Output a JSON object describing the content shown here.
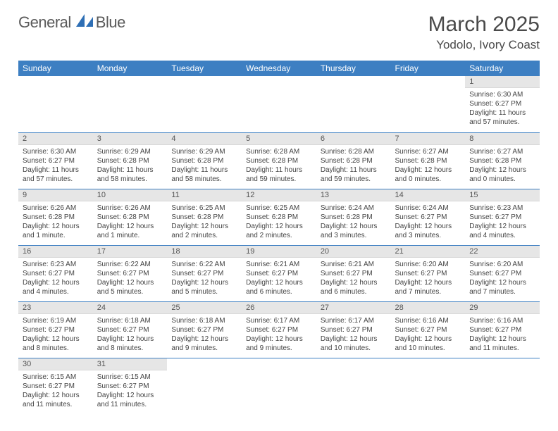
{
  "brand": {
    "word1": "General",
    "word2": "Blue"
  },
  "title": "March 2025",
  "location": "Yodolo, Ivory Coast",
  "colors": {
    "header_bg": "#3d7fc2",
    "header_text": "#ffffff",
    "daybar_bg": "#e6e6e6",
    "row_border": "#3d7fc2",
    "brand_gray": "#5a5a5a",
    "brand_blue": "#2e6fb5"
  },
  "typography": {
    "title_fontsize": 30,
    "location_fontsize": 17,
    "header_fontsize": 12,
    "cell_fontsize": 10,
    "daynum_fontsize": 11
  },
  "weekdays": [
    "Sunday",
    "Monday",
    "Tuesday",
    "Wednesday",
    "Thursday",
    "Friday",
    "Saturday"
  ],
  "first_weekday_index": 6,
  "days": [
    {
      "n": 1,
      "sunrise": "6:30 AM",
      "sunset": "6:27 PM",
      "daylight": "11 hours and 57 minutes."
    },
    {
      "n": 2,
      "sunrise": "6:30 AM",
      "sunset": "6:27 PM",
      "daylight": "11 hours and 57 minutes."
    },
    {
      "n": 3,
      "sunrise": "6:29 AM",
      "sunset": "6:28 PM",
      "daylight": "11 hours and 58 minutes."
    },
    {
      "n": 4,
      "sunrise": "6:29 AM",
      "sunset": "6:28 PM",
      "daylight": "11 hours and 58 minutes."
    },
    {
      "n": 5,
      "sunrise": "6:28 AM",
      "sunset": "6:28 PM",
      "daylight": "11 hours and 59 minutes."
    },
    {
      "n": 6,
      "sunrise": "6:28 AM",
      "sunset": "6:28 PM",
      "daylight": "11 hours and 59 minutes."
    },
    {
      "n": 7,
      "sunrise": "6:27 AM",
      "sunset": "6:28 PM",
      "daylight": "12 hours and 0 minutes."
    },
    {
      "n": 8,
      "sunrise": "6:27 AM",
      "sunset": "6:28 PM",
      "daylight": "12 hours and 0 minutes."
    },
    {
      "n": 9,
      "sunrise": "6:26 AM",
      "sunset": "6:28 PM",
      "daylight": "12 hours and 1 minute."
    },
    {
      "n": 10,
      "sunrise": "6:26 AM",
      "sunset": "6:28 PM",
      "daylight": "12 hours and 1 minute."
    },
    {
      "n": 11,
      "sunrise": "6:25 AM",
      "sunset": "6:28 PM",
      "daylight": "12 hours and 2 minutes."
    },
    {
      "n": 12,
      "sunrise": "6:25 AM",
      "sunset": "6:28 PM",
      "daylight": "12 hours and 2 minutes."
    },
    {
      "n": 13,
      "sunrise": "6:24 AM",
      "sunset": "6:28 PM",
      "daylight": "12 hours and 3 minutes."
    },
    {
      "n": 14,
      "sunrise": "6:24 AM",
      "sunset": "6:27 PM",
      "daylight": "12 hours and 3 minutes."
    },
    {
      "n": 15,
      "sunrise": "6:23 AM",
      "sunset": "6:27 PM",
      "daylight": "12 hours and 4 minutes."
    },
    {
      "n": 16,
      "sunrise": "6:23 AM",
      "sunset": "6:27 PM",
      "daylight": "12 hours and 4 minutes."
    },
    {
      "n": 17,
      "sunrise": "6:22 AM",
      "sunset": "6:27 PM",
      "daylight": "12 hours and 5 minutes."
    },
    {
      "n": 18,
      "sunrise": "6:22 AM",
      "sunset": "6:27 PM",
      "daylight": "12 hours and 5 minutes."
    },
    {
      "n": 19,
      "sunrise": "6:21 AM",
      "sunset": "6:27 PM",
      "daylight": "12 hours and 6 minutes."
    },
    {
      "n": 20,
      "sunrise": "6:21 AM",
      "sunset": "6:27 PM",
      "daylight": "12 hours and 6 minutes."
    },
    {
      "n": 21,
      "sunrise": "6:20 AM",
      "sunset": "6:27 PM",
      "daylight": "12 hours and 7 minutes."
    },
    {
      "n": 22,
      "sunrise": "6:20 AM",
      "sunset": "6:27 PM",
      "daylight": "12 hours and 7 minutes."
    },
    {
      "n": 23,
      "sunrise": "6:19 AM",
      "sunset": "6:27 PM",
      "daylight": "12 hours and 8 minutes."
    },
    {
      "n": 24,
      "sunrise": "6:18 AM",
      "sunset": "6:27 PM",
      "daylight": "12 hours and 8 minutes."
    },
    {
      "n": 25,
      "sunrise": "6:18 AM",
      "sunset": "6:27 PM",
      "daylight": "12 hours and 9 minutes."
    },
    {
      "n": 26,
      "sunrise": "6:17 AM",
      "sunset": "6:27 PM",
      "daylight": "12 hours and 9 minutes."
    },
    {
      "n": 27,
      "sunrise": "6:17 AM",
      "sunset": "6:27 PM",
      "daylight": "12 hours and 10 minutes."
    },
    {
      "n": 28,
      "sunrise": "6:16 AM",
      "sunset": "6:27 PM",
      "daylight": "12 hours and 10 minutes."
    },
    {
      "n": 29,
      "sunrise": "6:16 AM",
      "sunset": "6:27 PM",
      "daylight": "12 hours and 11 minutes."
    },
    {
      "n": 30,
      "sunrise": "6:15 AM",
      "sunset": "6:27 PM",
      "daylight": "12 hours and 11 minutes."
    },
    {
      "n": 31,
      "sunrise": "6:15 AM",
      "sunset": "6:27 PM",
      "daylight": "12 hours and 11 minutes."
    }
  ],
  "labels": {
    "sunrise": "Sunrise:",
    "sunset": "Sunset:",
    "daylight": "Daylight:"
  }
}
